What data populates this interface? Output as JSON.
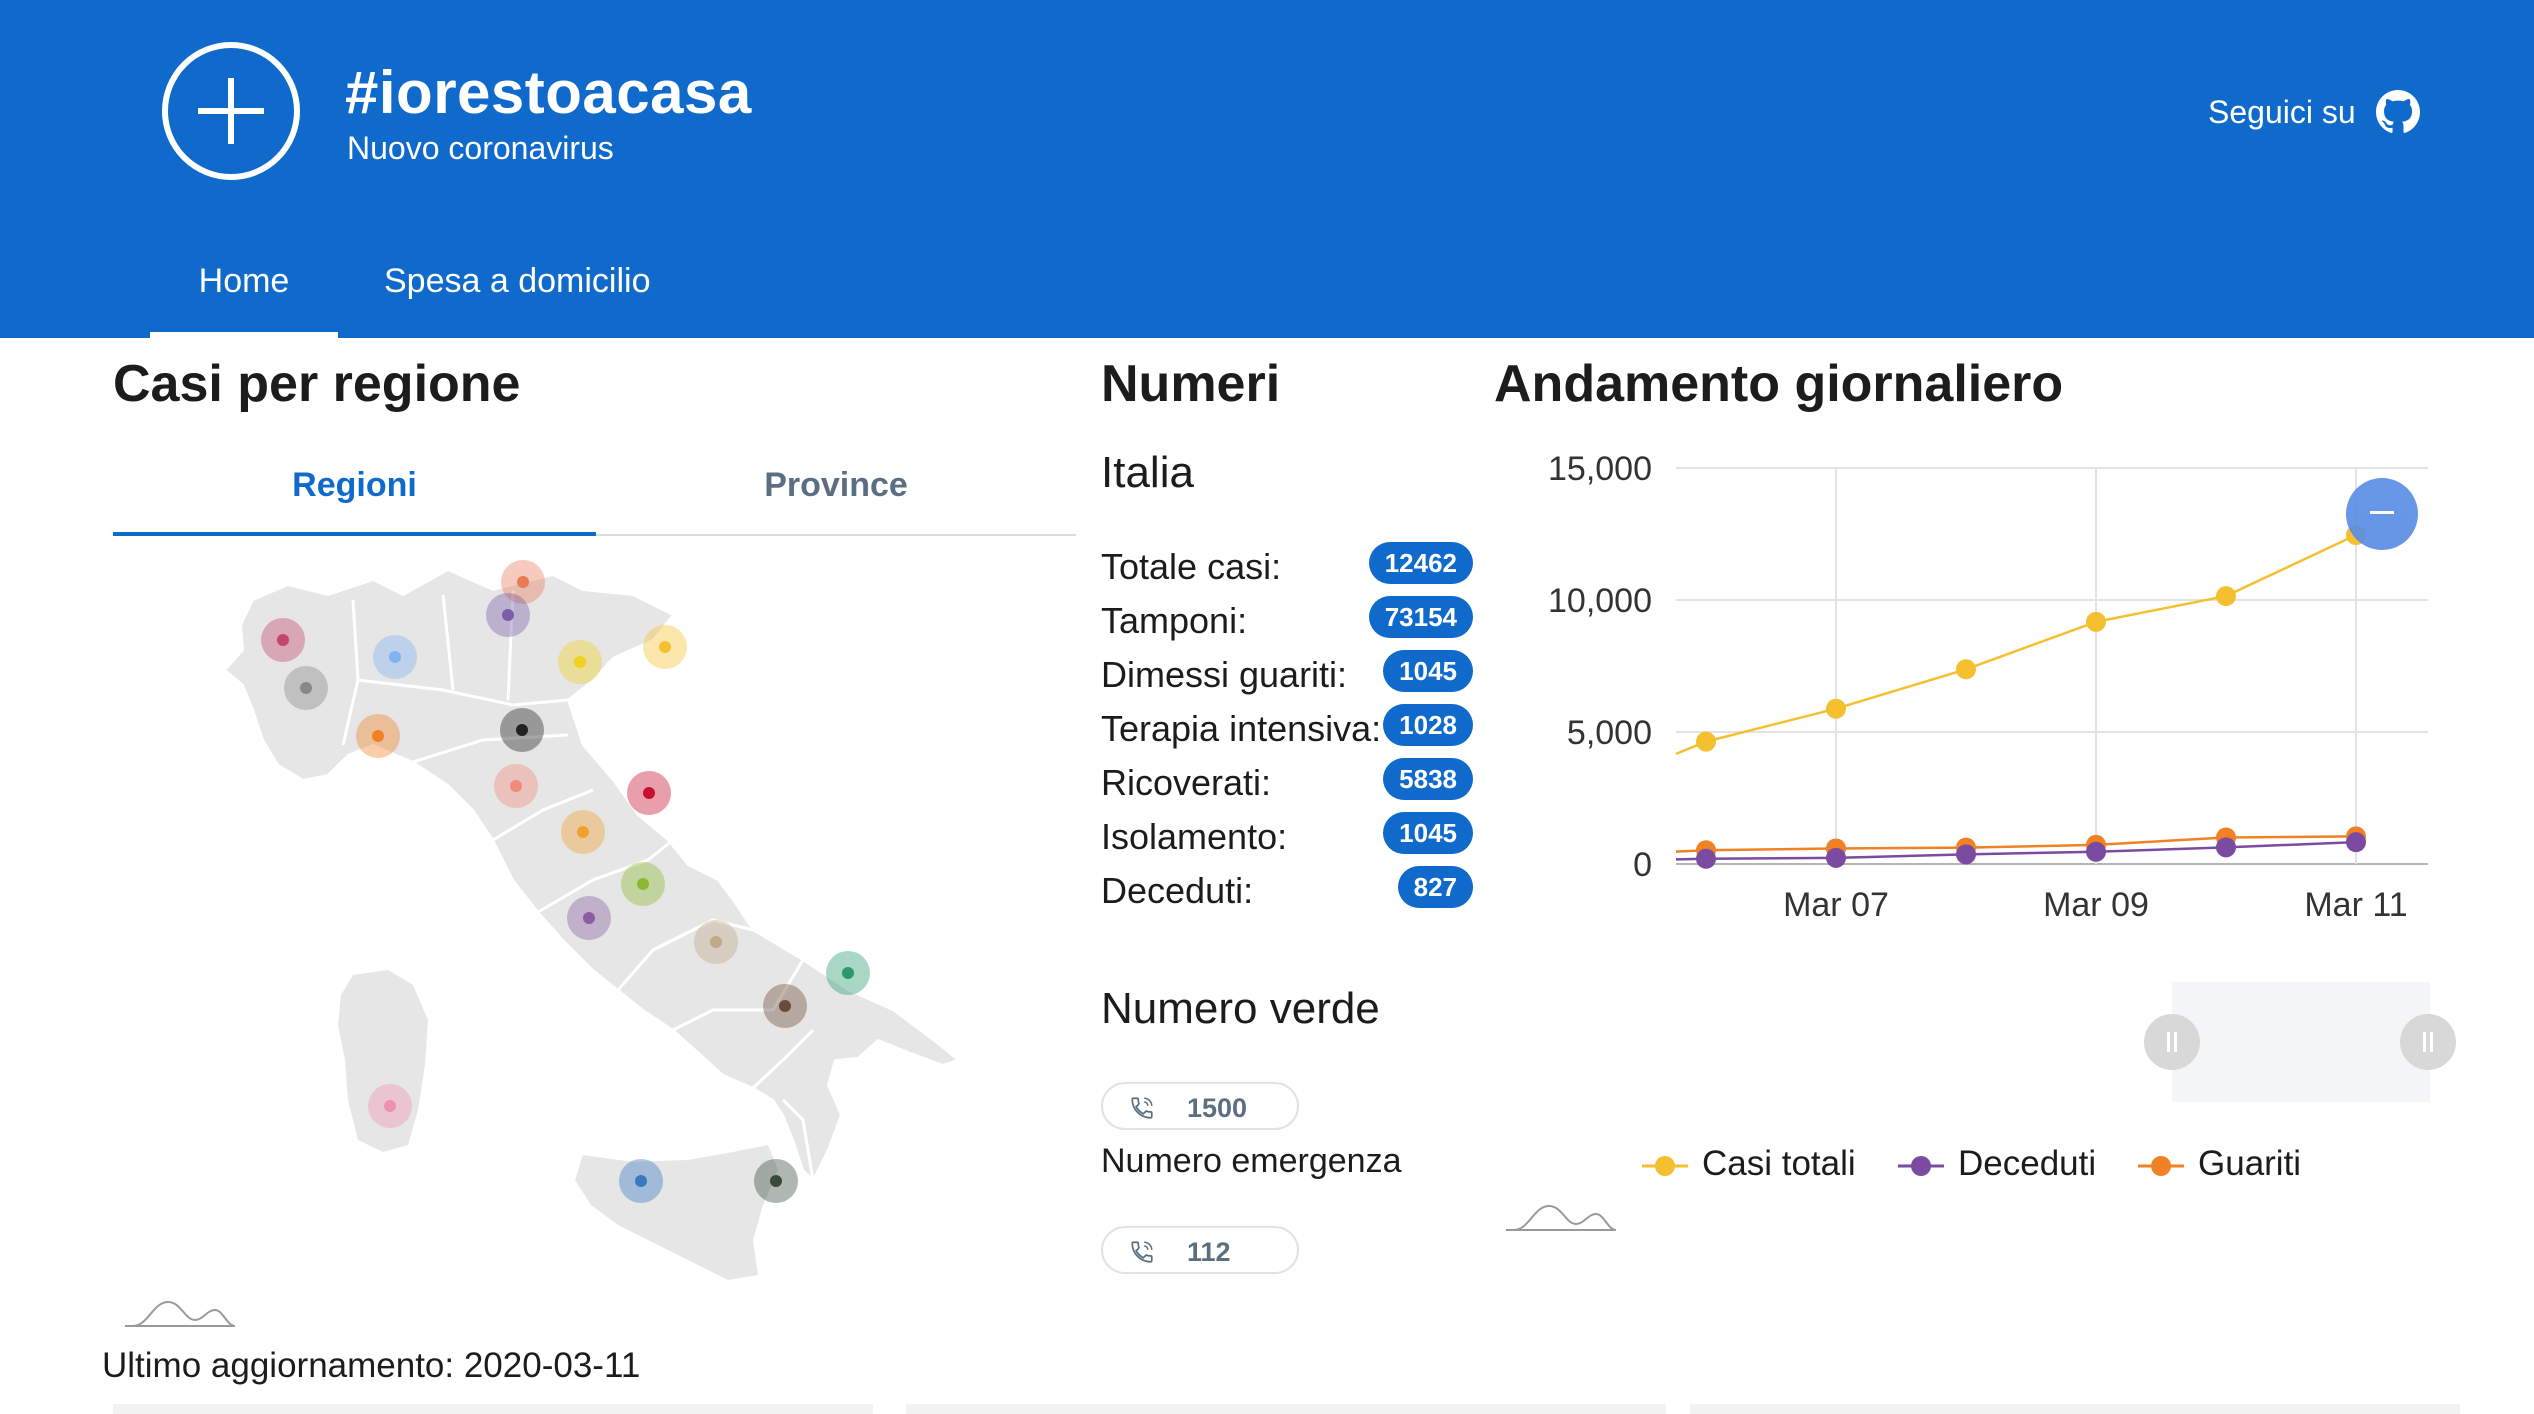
{
  "header": {
    "title": "#iorestoacasa",
    "subtitle": "Nuovo coronavirus",
    "follow_label": "Seguici su",
    "follow_icon": "github-icon",
    "logo_icon": "plus-circle-icon",
    "brand_color": "#0f6acc"
  },
  "nav": {
    "items": [
      {
        "label": "Home",
        "active": true
      },
      {
        "label": "Spesa a domicilio",
        "active": false
      }
    ]
  },
  "regions": {
    "title": "Casi per regione",
    "tabs": [
      {
        "label": "Regioni",
        "active": true
      },
      {
        "label": "Province",
        "active": false
      }
    ],
    "last_update": "Ultimo aggiornamento: 2020-03-11"
  },
  "numbers": {
    "title": "Numeri",
    "area": "Italia",
    "stats": [
      {
        "label": "Totale casi:",
        "value": "12462"
      },
      {
        "label": "Tamponi:",
        "value": "73154"
      },
      {
        "label": "Dimessi guariti:",
        "value": "1045"
      },
      {
        "label": "Terapia intensiva:",
        "value": "1028"
      },
      {
        "label": "Ricoverati:",
        "value": "5838"
      },
      {
        "label": "Isolamento:",
        "value": "1045"
      },
      {
        "label": "Deceduti:",
        "value": "827"
      }
    ],
    "toll_free_title": "Numero verde",
    "toll_free_number": "1500",
    "emergency_title": "Numero emergenza",
    "emergency_number": "112",
    "phone_icon": "phone-icon"
  },
  "daily": {
    "title": "Andamento giornaliero"
  },
  "chart_data": {
    "type": "line",
    "title": "Andamento giornaliero",
    "x": [
      "Mar 06",
      "Mar 07",
      "Mar 08",
      "Mar 09",
      "Mar 10",
      "Mar 11"
    ],
    "x_tick_labels": [
      "Mar 07",
      "Mar 09",
      "Mar 11"
    ],
    "y_tick_labels": [
      "0",
      "5,000",
      "10,000",
      "15,000"
    ],
    "ylim": [
      0,
      15000
    ],
    "grid": true,
    "legend_position": "bottom",
    "series": [
      {
        "name": "Casi totali",
        "color": "#f5c02f",
        "values": [
          4636,
          5883,
          7375,
          9172,
          10149,
          12462
        ]
      },
      {
        "name": "Deceduti",
        "color": "#7a4ba0",
        "values": [
          197,
          233,
          366,
          463,
          631,
          827
        ]
      },
      {
        "name": "Guariti",
        "color": "#f08125",
        "values": [
          523,
          589,
          622,
          724,
          1004,
          1045
        ]
      }
    ]
  }
}
